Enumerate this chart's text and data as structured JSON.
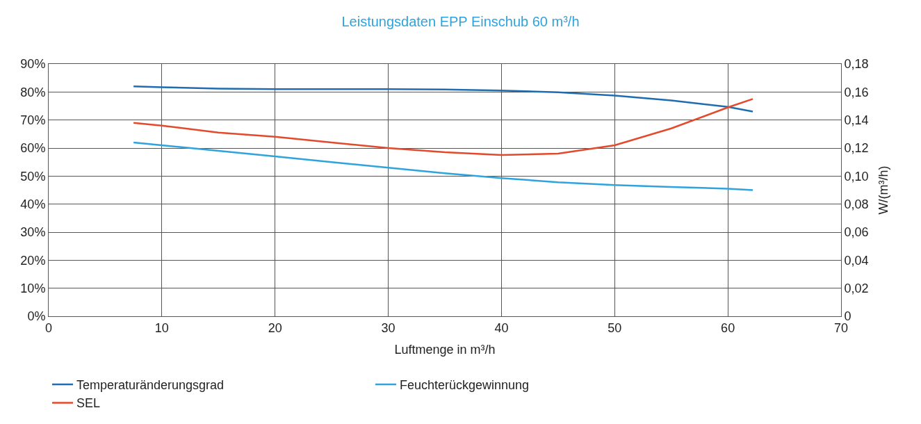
{
  "chart_data": {
    "type": "line",
    "title": "Leistungsdaten EPP Einschub 60 m³/h",
    "xlabel": "Luftmenge in m³/h",
    "y2label": "W/(m³/h)",
    "x": [
      7.5,
      10,
      15,
      20,
      25,
      30,
      35,
      40,
      45,
      50,
      55,
      60,
      62.2
    ],
    "series": [
      {
        "name": "Temperaturänderungsgrad",
        "color": "#1f6db0",
        "values": [
          82,
          81.7,
          81.2,
          81,
          81,
          81,
          80.9,
          80.5,
          79.9,
          78.7,
          77,
          74.7,
          73
        ]
      },
      {
        "name": "Feuchterückgewinnung",
        "color": "#2ea3dc",
        "values": [
          62,
          61,
          59,
          57,
          55,
          53,
          51,
          49.3,
          47.8,
          46.8,
          46.1,
          45.5,
          45
        ]
      },
      {
        "name": "SEL",
        "color": "#e3492b",
        "axis": "y2",
        "values": [
          0.138,
          0.136,
          0.131,
          0.128,
          0.124,
          0.12,
          0.117,
          0.115,
          0.116,
          0.122,
          0.134,
          0.149,
          0.155
        ]
      }
    ],
    "xlim": [
      0,
      70
    ],
    "xticks": [
      0,
      10,
      20,
      30,
      40,
      50,
      60,
      70
    ],
    "ylim": [
      0,
      90
    ],
    "yticks": [
      {
        "value": 0,
        "label": "0%"
      },
      {
        "value": 10,
        "label": "10%"
      },
      {
        "value": 20,
        "label": "20%"
      },
      {
        "value": 30,
        "label": "30%"
      },
      {
        "value": 40,
        "label": "40%"
      },
      {
        "value": 50,
        "label": "50%"
      },
      {
        "value": 60,
        "label": "60%"
      },
      {
        "value": 70,
        "label": "70%"
      },
      {
        "value": 80,
        "label": "80%"
      },
      {
        "value": 90,
        "label": "90%"
      }
    ],
    "y2lim": [
      0,
      0.18
    ],
    "y2ticks": [
      0,
      {
        "value": 0.02,
        "label": "0,02"
      },
      {
        "value": 0.04,
        "label": "0,04"
      },
      {
        "value": 0.06,
        "label": "0,06"
      },
      {
        "value": 0.08,
        "label": "0,08"
      },
      {
        "value": 0.1,
        "label": "0,10"
      },
      {
        "value": 0.12,
        "label": "0,12"
      },
      {
        "value": 0.14,
        "label": "0,14"
      },
      {
        "value": 0.16,
        "label": "0,16"
      },
      {
        "value": 0.18,
        "label": "0,18"
      }
    ],
    "grid": true,
    "legend": "bottom",
    "marker": "none",
    "line_style": "solid"
  }
}
